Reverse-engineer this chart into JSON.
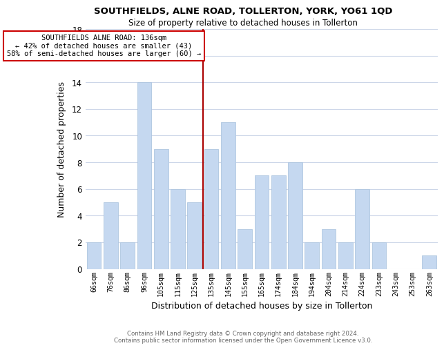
{
  "title": "SOUTHFIELDS, ALNE ROAD, TOLLERTON, YORK, YO61 1QD",
  "subtitle": "Size of property relative to detached houses in Tollerton",
  "xlabel": "Distribution of detached houses by size in Tollerton",
  "ylabel": "Number of detached properties",
  "bar_labels": [
    "66sqm",
    "76sqm",
    "86sqm",
    "96sqm",
    "105sqm",
    "115sqm",
    "125sqm",
    "135sqm",
    "145sqm",
    "155sqm",
    "165sqm",
    "174sqm",
    "184sqm",
    "194sqm",
    "204sqm",
    "214sqm",
    "224sqm",
    "233sqm",
    "243sqm",
    "253sqm",
    "263sqm"
  ],
  "bar_values": [
    2,
    5,
    2,
    14,
    9,
    6,
    5,
    9,
    11,
    3,
    7,
    7,
    8,
    2,
    3,
    2,
    6,
    2,
    0,
    0,
    1
  ],
  "bar_color": "#c5d8f0",
  "bar_edge_color": "#aec6e0",
  "vline_color": "#aa0000",
  "annotation_title": "SOUTHFIELDS ALNE ROAD: 136sqm",
  "annotation_line1": "← 42% of detached houses are smaller (43)",
  "annotation_line2": "58% of semi-detached houses are larger (60) →",
  "annotation_box_color": "#ffffff",
  "annotation_box_edge": "#cc0000",
  "ylim": [
    0,
    18
  ],
  "yticks": [
    0,
    2,
    4,
    6,
    8,
    10,
    12,
    14,
    16,
    18
  ],
  "footer1": "Contains HM Land Registry data © Crown copyright and database right 2024.",
  "footer2": "Contains public sector information licensed under the Open Government Licence v3.0.",
  "background_color": "#ffffff",
  "grid_color": "#ccd6e8"
}
